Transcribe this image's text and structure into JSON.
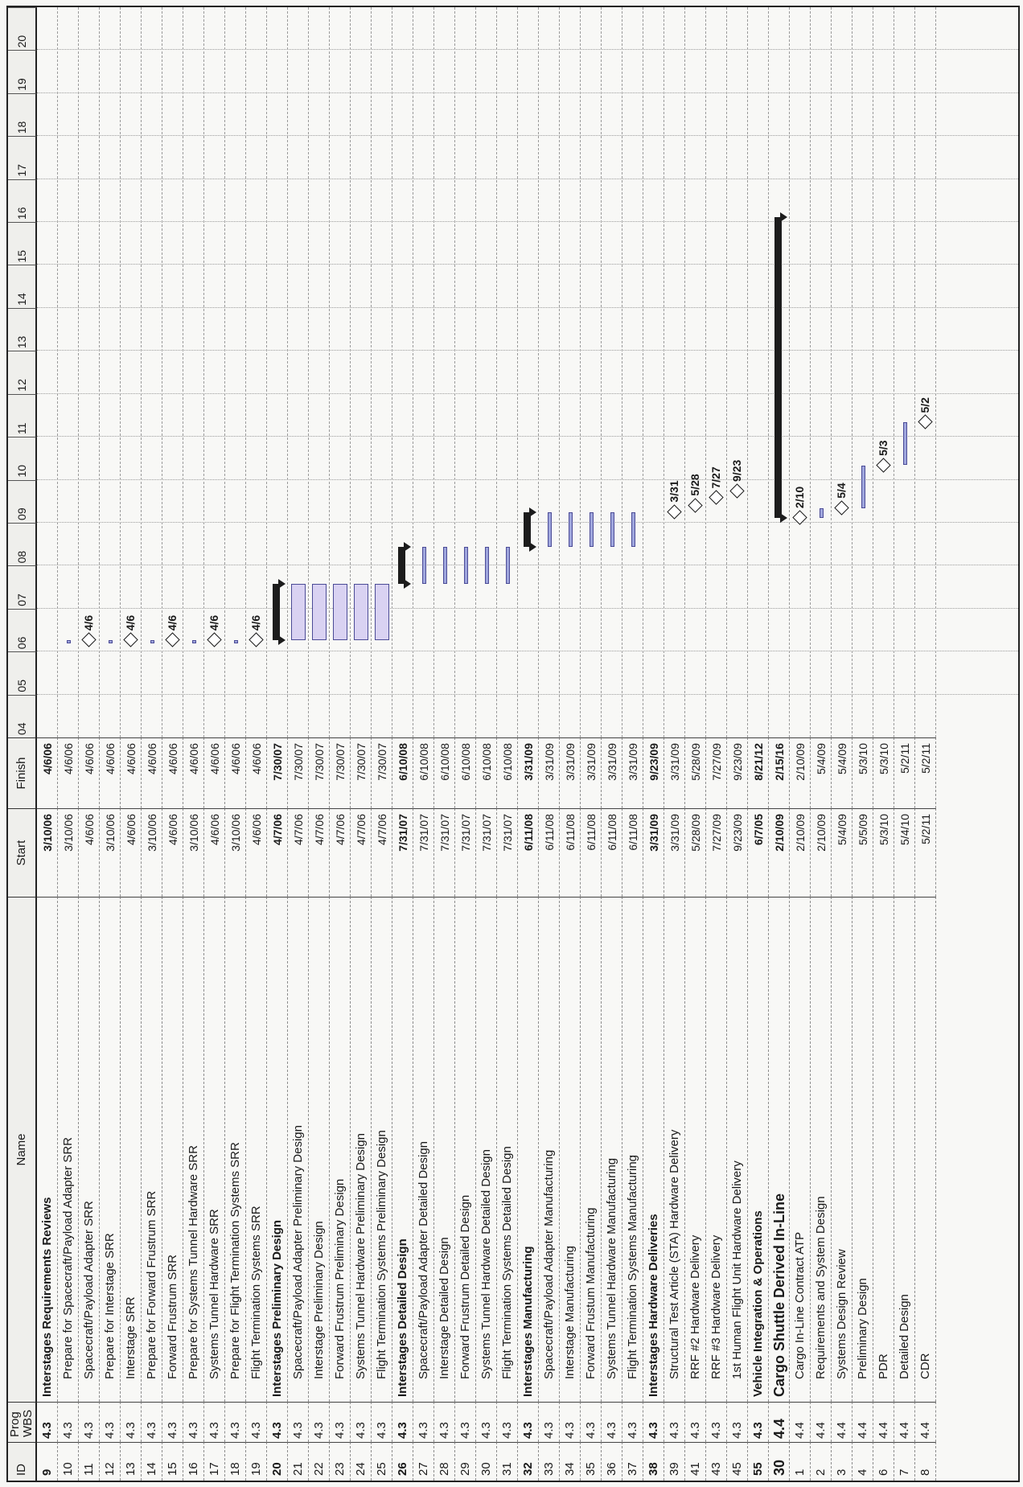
{
  "headers": {
    "id": "ID",
    "wbs": "Prog WBS",
    "name": "Name",
    "start": "Start",
    "finish": "Finish"
  },
  "years": [
    "04",
    "05",
    "06",
    "07",
    "08",
    "09",
    "10",
    "11",
    "12",
    "13",
    "14",
    "15",
    "16",
    "17",
    "18",
    "19",
    "20"
  ],
  "rows": [
    {
      "id": "9",
      "wbs": "4.3",
      "name": "Interstages Requirements Reviews",
      "start": "3/10/06",
      "finish": "4/6/06",
      "style": "bold"
    },
    {
      "id": "10",
      "wbs": "4.3",
      "name": "Prepare for Spacecraft/Payload Adapter SRR",
      "start": "3/10/06",
      "finish": "4/6/06",
      "indent": 1
    },
    {
      "id": "11",
      "wbs": "4.3",
      "name": "Spacecraft/Payload Adapter SRR",
      "start": "4/6/06",
      "finish": "4/6/06",
      "indent": 1
    },
    {
      "id": "12",
      "wbs": "4.3",
      "name": "Prepare for Interstage SRR",
      "start": "3/10/06",
      "finish": "4/6/06",
      "indent": 1
    },
    {
      "id": "13",
      "wbs": "4.3",
      "name": "Interstage SRR",
      "start": "4/6/06",
      "finish": "4/6/06",
      "indent": 1
    },
    {
      "id": "14",
      "wbs": "4.3",
      "name": "Prepare for Forward Frustrum SRR",
      "start": "3/10/06",
      "finish": "4/6/06",
      "indent": 1
    },
    {
      "id": "15",
      "wbs": "4.3",
      "name": "Forward Frustrum SRR",
      "start": "4/6/06",
      "finish": "4/6/06",
      "indent": 1
    },
    {
      "id": "16",
      "wbs": "4.3",
      "name": "Prepare for Systems Tunnel Hardware SRR",
      "start": "3/10/06",
      "finish": "4/6/06",
      "indent": 1
    },
    {
      "id": "17",
      "wbs": "4.3",
      "name": "Systems Tunnel Hardware SRR",
      "start": "4/6/06",
      "finish": "4/6/06",
      "indent": 1
    },
    {
      "id": "18",
      "wbs": "4.3",
      "name": "Prepare for Flight Termination Systems SRR",
      "start": "3/10/06",
      "finish": "4/6/06",
      "indent": 1
    },
    {
      "id": "19",
      "wbs": "4.3",
      "name": "Flight Termination Systems SRR",
      "start": "4/6/06",
      "finish": "4/6/06",
      "indent": 1
    },
    {
      "id": "20",
      "wbs": "4.3",
      "name": "Interstages Preliminary Design",
      "start": "4/7/06",
      "finish": "7/30/07",
      "style": "bold"
    },
    {
      "id": "21",
      "wbs": "4.3",
      "name": "Spacecraft/Payload Adapter Preliminary Design",
      "start": "4/7/06",
      "finish": "7/30/07",
      "indent": 1
    },
    {
      "id": "22",
      "wbs": "4.3",
      "name": "Interstage Preliminary Design",
      "start": "4/7/06",
      "finish": "7/30/07",
      "indent": 1
    },
    {
      "id": "23",
      "wbs": "4.3",
      "name": "Forward Frustrum Preliminary Design",
      "start": "4/7/06",
      "finish": "7/30/07",
      "indent": 1
    },
    {
      "id": "24",
      "wbs": "4.3",
      "name": "Systems Tunnel Hardware Preliminary Design",
      "start": "4/7/06",
      "finish": "7/30/07",
      "indent": 1
    },
    {
      "id": "25",
      "wbs": "4.3",
      "name": "Flight Termination Systems Preliminary Design",
      "start": "4/7/06",
      "finish": "7/30/07",
      "indent": 1
    },
    {
      "id": "26",
      "wbs": "4.3",
      "name": "Interstages Detailed Design",
      "start": "7/31/07",
      "finish": "6/10/08",
      "style": "bold"
    },
    {
      "id": "27",
      "wbs": "4.3",
      "name": "Spacecraft/Payload Adapter Detailed Design",
      "start": "7/31/07",
      "finish": "6/10/08",
      "indent": 1
    },
    {
      "id": "28",
      "wbs": "4.3",
      "name": "Interstage Detailed Design",
      "start": "7/31/07",
      "finish": "6/10/08",
      "indent": 1
    },
    {
      "id": "29",
      "wbs": "4.3",
      "name": "Forward Frustrum Detailed Design",
      "start": "7/31/07",
      "finish": "6/10/08",
      "indent": 1
    },
    {
      "id": "30",
      "wbs": "4.3",
      "name": "Systems Tunnel Hardware Detailed Design",
      "start": "7/31/07",
      "finish": "6/10/08",
      "indent": 1
    },
    {
      "id": "31",
      "wbs": "4.3",
      "name": "Flight Termination Systems Detailed Design",
      "start": "7/31/07",
      "finish": "6/10/08",
      "indent": 1
    },
    {
      "id": "32",
      "wbs": "4.3",
      "name": "Interstages Manufacturing",
      "start": "6/11/08",
      "finish": "3/31/09",
      "style": "bold"
    },
    {
      "id": "33",
      "wbs": "4.3",
      "name": "Spacecraft/Payload Adapter Manufacturing",
      "start": "6/11/08",
      "finish": "3/31/09",
      "indent": 1
    },
    {
      "id": "34",
      "wbs": "4.3",
      "name": "Interstage Manufacturing",
      "start": "6/11/08",
      "finish": "3/31/09",
      "indent": 1
    },
    {
      "id": "35",
      "wbs": "4.3",
      "name": "Forward Frustum Manufacturing",
      "start": "6/11/08",
      "finish": "3/31/09",
      "indent": 1
    },
    {
      "id": "36",
      "wbs": "4.3",
      "name": "Systems Tunnel Hardware Manufacturing",
      "start": "6/11/08",
      "finish": "3/31/09",
      "indent": 1
    },
    {
      "id": "37",
      "wbs": "4.3",
      "name": "Flight Termination Systems Manufacturing",
      "start": "6/11/08",
      "finish": "3/31/09",
      "indent": 1
    },
    {
      "id": "38",
      "wbs": "4.3",
      "name": "Interstages Hardware Deliveries",
      "start": "3/31/09",
      "finish": "9/23/09",
      "style": "bold"
    },
    {
      "id": "39",
      "wbs": "4.3",
      "name": "Structural Test Article (STA) Hardware Delivery",
      "start": "3/31/09",
      "finish": "3/31/09",
      "indent": 1
    },
    {
      "id": "41",
      "wbs": "4.3",
      "name": "RRF #2  Hardware Delivery",
      "start": "5/28/09",
      "finish": "5/28/09",
      "indent": 1
    },
    {
      "id": "43",
      "wbs": "4.3",
      "name": "RRF #3 Hardware Delivery",
      "start": "7/27/09",
      "finish": "7/27/09",
      "indent": 1
    },
    {
      "id": "45",
      "wbs": "4.3",
      "name": "1st Human Flight Unit Hardware Delivery",
      "start": "9/23/09",
      "finish": "9/23/09",
      "indent": 1
    },
    {
      "id": "55",
      "wbs": "4.3",
      "name": "Vehicle Integration & Operations",
      "start": "6/7/05",
      "finish": "8/21/12",
      "style": "bold"
    },
    {
      "id": "30",
      "wbs": "4.4",
      "name": "Cargo Shuttle Derived In-Line",
      "start": "2/10/09",
      "finish": "2/15/16",
      "style": "big"
    },
    {
      "id": "1",
      "wbs": "4.4",
      "name": "Cargo In-Line Contract ATP",
      "start": "2/10/09",
      "finish": "2/10/09",
      "indent": 1
    },
    {
      "id": "2",
      "wbs": "4.4",
      "name": "Requirements and System Design",
      "start": "2/10/09",
      "finish": "5/4/09",
      "indent": 1
    },
    {
      "id": "3",
      "wbs": "4.4",
      "name": "Systems Design Review",
      "start": "5/4/09",
      "finish": "5/4/09",
      "indent": 1
    },
    {
      "id": "4",
      "wbs": "4.4",
      "name": "Preliminary Design",
      "start": "5/5/09",
      "finish": "5/3/10",
      "indent": 1
    },
    {
      "id": "6",
      "wbs": "4.4",
      "name": "PDR",
      "start": "5/3/10",
      "finish": "5/3/10",
      "indent": 1
    },
    {
      "id": "7",
      "wbs": "4.4",
      "name": "Detailed Design",
      "start": "5/4/10",
      "finish": "5/2/11",
      "indent": 1
    },
    {
      "id": "8",
      "wbs": "4.4",
      "name": "CDR",
      "start": "5/2/11",
      "finish": "5/2/11",
      "indent": 1
    }
  ],
  "chart_data": {
    "type": "gantt",
    "x_axis": "year",
    "xlim": [
      "2004",
      "2021"
    ],
    "tasks": [
      {
        "row": 1,
        "kind": "bar",
        "start": 2006.19,
        "end": 2006.26
      },
      {
        "row": 2,
        "kind": "milestone",
        "date": 2006.26,
        "label": "4/6"
      },
      {
        "row": 3,
        "kind": "bar",
        "start": 2006.19,
        "end": 2006.26
      },
      {
        "row": 4,
        "kind": "milestone",
        "date": 2006.26,
        "label": "4/6"
      },
      {
        "row": 5,
        "kind": "bar",
        "start": 2006.19,
        "end": 2006.26
      },
      {
        "row": 6,
        "kind": "milestone",
        "date": 2006.26,
        "label": "4/6"
      },
      {
        "row": 7,
        "kind": "bar",
        "start": 2006.19,
        "end": 2006.26
      },
      {
        "row": 8,
        "kind": "milestone",
        "date": 2006.26,
        "label": "4/6"
      },
      {
        "row": 9,
        "kind": "bar",
        "start": 2006.19,
        "end": 2006.26
      },
      {
        "row": 10,
        "kind": "milestone",
        "date": 2006.26,
        "label": "4/6"
      },
      {
        "row": 11,
        "kind": "summary",
        "start": 2006.27,
        "end": 2007.58
      },
      {
        "row": 12,
        "kind": "bar",
        "start": 2006.27,
        "end": 2007.58
      },
      {
        "row": 13,
        "kind": "bar",
        "start": 2006.27,
        "end": 2007.58
      },
      {
        "row": 14,
        "kind": "bar",
        "start": 2006.27,
        "end": 2007.58
      },
      {
        "row": 15,
        "kind": "bar",
        "start": 2006.27,
        "end": 2007.58
      },
      {
        "row": 16,
        "kind": "bar",
        "start": 2006.27,
        "end": 2007.58
      },
      {
        "row": 17,
        "kind": "summary",
        "start": 2007.58,
        "end": 2008.44
      },
      {
        "row": 18,
        "kind": "bar",
        "start": 2007.58,
        "end": 2008.44
      },
      {
        "row": 19,
        "kind": "bar",
        "start": 2007.58,
        "end": 2008.44
      },
      {
        "row": 20,
        "kind": "bar",
        "start": 2007.58,
        "end": 2008.44
      },
      {
        "row": 21,
        "kind": "bar",
        "start": 2007.58,
        "end": 2008.44
      },
      {
        "row": 22,
        "kind": "bar",
        "start": 2007.58,
        "end": 2008.44
      },
      {
        "row": 23,
        "kind": "summary",
        "start": 2008.44,
        "end": 2009.25
      },
      {
        "row": 24,
        "kind": "bar",
        "start": 2008.44,
        "end": 2009.25
      },
      {
        "row": 25,
        "kind": "bar",
        "start": 2008.44,
        "end": 2009.25
      },
      {
        "row": 26,
        "kind": "bar",
        "start": 2008.44,
        "end": 2009.25
      },
      {
        "row": 27,
        "kind": "bar",
        "start": 2008.44,
        "end": 2009.25
      },
      {
        "row": 28,
        "kind": "bar",
        "start": 2008.44,
        "end": 2009.25
      },
      {
        "row": 30,
        "kind": "milestone",
        "date": 2009.25,
        "label": "3/31"
      },
      {
        "row": 31,
        "kind": "milestone",
        "date": 2009.4,
        "label": "5/28"
      },
      {
        "row": 32,
        "kind": "milestone",
        "date": 2009.57,
        "label": "7/27"
      },
      {
        "row": 33,
        "kind": "milestone",
        "date": 2009.73,
        "label": "9/23"
      },
      {
        "row": 35,
        "kind": "summary",
        "start": 2009.11,
        "end": 2016.12
      },
      {
        "row": 36,
        "kind": "milestone",
        "date": 2009.11,
        "label": "2/10"
      },
      {
        "row": 37,
        "kind": "bar",
        "start": 2009.11,
        "end": 2009.34
      },
      {
        "row": 38,
        "kind": "milestone",
        "date": 2009.34,
        "label": "5/4"
      },
      {
        "row": 39,
        "kind": "bar",
        "start": 2009.34,
        "end": 2010.33
      },
      {
        "row": 40,
        "kind": "milestone",
        "date": 2010.33,
        "label": "5/3"
      },
      {
        "row": 41,
        "kind": "bar",
        "start": 2010.34,
        "end": 2011.33
      },
      {
        "row": 42,
        "kind": "milestone",
        "date": 2011.33,
        "label": "5/2"
      }
    ]
  }
}
